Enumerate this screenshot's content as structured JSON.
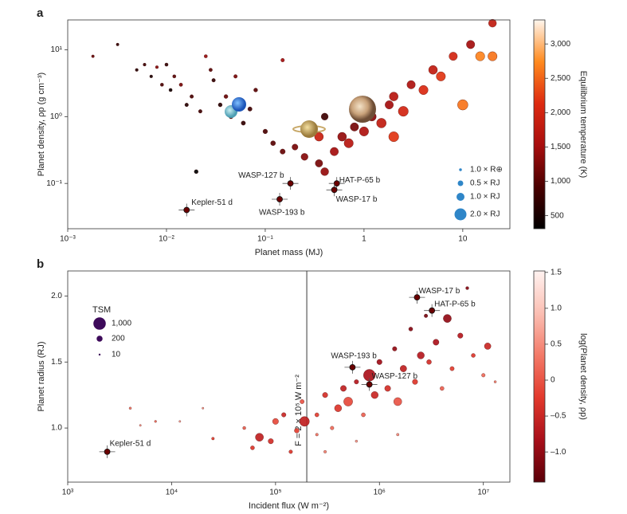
{
  "chart_data": [
    {
      "type": "scatter",
      "panel_label": "a",
      "xlabel": "Planet mass (MJ)",
      "ylabel": "Planet density, ρp (g cm⁻³)",
      "xscale": "log",
      "yscale": "log",
      "xlim": [
        0.001,
        30
      ],
      "ylim": [
        0.021,
        28
      ],
      "xticks": [
        {
          "value": 0.001,
          "label": "10⁻³"
        },
        {
          "value": 0.01,
          "label": "10⁻²"
        },
        {
          "value": 0.1,
          "label": "10⁻¹"
        },
        1,
        10
      ],
      "yticks": [
        {
          "value": 0.1,
          "label": "10⁻¹"
        },
        {
          "value": 1,
          "label": "10⁰"
        },
        {
          "value": 10,
          "label": "10¹"
        }
      ],
      "colorbar_label": "Equilibrium temperature (K)",
      "clim": [
        310,
        3350
      ],
      "cticks": [
        500,
        {
          "value": 1000,
          "label": "1,000"
        },
        {
          "value": 1500,
          "label": "1,500"
        },
        {
          "value": 2000,
          "label": "2,000"
        },
        {
          "value": 2500,
          "label": "2,500"
        },
        {
          "value": 3000,
          "label": "3,000"
        }
      ],
      "colormap": [
        "#000000",
        "#4a0000",
        "#a80e0e",
        "#dd2a10",
        "#ff8a1e",
        "#fff6ee"
      ],
      "series": [
        {
          "x": [
            0.0018,
            0.0032,
            0.005,
            0.006,
            0.007,
            0.008,
            0.009,
            0.01,
            0.011,
            0.012,
            0.014,
            0.016,
            0.018,
            0.02,
            0.022,
            0.025,
            0.028,
            0.03,
            0.035,
            0.04,
            0.045,
            0.05,
            0.06,
            0.07,
            0.08,
            0.1,
            0.12,
            0.15,
            0.15,
            0.2,
            0.25,
            0.3,
            0.35,
            0.4,
            0.5,
            0.6,
            0.7,
            0.8,
            1,
            1.2,
            1.5,
            1.8,
            2,
            2.5,
            3,
            4,
            5,
            6,
            8,
            10,
            15,
            20,
            20,
            2,
            0.35,
            1,
            0.4,
            12
          ],
          "values": [
            8,
            12,
            5,
            6,
            4,
            5.5,
            3,
            6,
            2.5,
            4,
            3,
            1.5,
            2,
            0.15,
            1.2,
            8,
            5,
            3.5,
            1.5,
            2,
            1,
            4,
            0.8,
            1.3,
            2.5,
            0.6,
            0.4,
            7,
            0.3,
            0.35,
            0.25,
            0.6,
            0.2,
            0.15,
            0.3,
            0.5,
            0.4,
            0.7,
            0.6,
            1,
            0.8,
            1.5,
            2,
            1.2,
            3,
            2.5,
            5,
            4,
            8,
            1.5,
            8,
            25,
            8,
            0.5,
            0.5,
            1.5,
            1,
            12
          ],
          "color_values": [
            1100,
            700,
            600,
            800,
            500,
            1300,
            900,
            700,
            400,
            1000,
            1200,
            600,
            900,
            300,
            800,
            1400,
            1000,
            700,
            600,
            1100,
            900,
            1200,
            700,
            800,
            1000,
            900,
            1000,
            1500,
            1100,
            1200,
            1300,
            1300,
            1200,
            1400,
            1500,
            1400,
            1700,
            1200,
            1600,
            1300,
            1800,
            1500,
            1700,
            2000,
            1600,
            2100,
            1800,
            2200,
            2000,
            2600,
            2700,
            1800,
            2600,
            2200,
            1900,
            1000,
            800,
            1500
          ],
          "sizes": [
            0.1,
            0.1,
            0.12,
            0.12,
            0.12,
            0.12,
            0.15,
            0.15,
            0.15,
            0.15,
            0.18,
            0.2,
            0.2,
            0.25,
            0.2,
            0.15,
            0.18,
            0.2,
            0.25,
            0.25,
            0.3,
            0.2,
            0.3,
            0.3,
            0.25,
            0.35,
            0.4,
            0.2,
            0.45,
            0.6,
            0.8,
            0.9,
            0.9,
            1.0,
            1.1,
            1.2,
            1.3,
            1.1,
            1.3,
            1.2,
            1.4,
            1.1,
            1.2,
            1.5,
            1.1,
            1.3,
            1.2,
            1.3,
            1.1,
            1.6,
            1.3,
            1.0,
            1.3,
            1.5,
            1.2,
            1.0,
            0.8,
            1.1
          ]
        }
      ],
      "annotations": [
        {
          "text": "Kepler-51 d",
          "x": 0.016,
          "y": 0.04
        },
        {
          "text": "WASP-193 b",
          "x": 0.14,
          "y": 0.058
        },
        {
          "text": "WASP-127 b",
          "x": 0.18,
          "y": 0.1
        },
        {
          "text": "HAT-P-65 b",
          "x": 0.53,
          "y": 0.1
        },
        {
          "text": "WASP-17 b",
          "x": 0.5,
          "y": 0.08
        }
      ],
      "size_legend": {
        "labels": [
          "1.0 × R⊕",
          "0.5 × RJ",
          "1.0 × RJ",
          "2.0 × RJ"
        ],
        "values": [
          0.0892,
          0.5,
          1,
          2
        ]
      }
    },
    {
      "type": "scatter",
      "panel_label": "b",
      "xlabel": "Incident flux (W m⁻²)",
      "ylabel": "Planet radius (RJ)",
      "xscale": "log",
      "yscale": "linear",
      "xlim": [
        1000,
        18000000
      ],
      "ylim": [
        0.59,
        2.19
      ],
      "xticks": [
        {
          "value": 1000,
          "label": "10³"
        },
        {
          "value": 10000,
          "label": "10⁴"
        },
        {
          "value": 100000,
          "label": "10⁵"
        },
        {
          "value": 1000000,
          "label": "10⁶"
        },
        {
          "value": 10000000,
          "label": "10⁷"
        }
      ],
      "yticks": [
        {
          "value": 1,
          "label": "1.0"
        },
        1.5,
        {
          "value": 2,
          "label": "2.0"
        }
      ],
      "colorbar_label": "log(Planet density, ρp)",
      "clim": [
        -1.42,
        1.52
      ],
      "cticks": [
        {
          "value": -1,
          "label": "–1.0"
        },
        {
          "value": -0.5,
          "label": "–0.5"
        },
        0,
        0.5,
        {
          "value": 1,
          "label": "1.0"
        },
        1.5
      ],
      "colormap": [
        "#5a0008",
        "#a80f1a",
        "#e2392c",
        "#f37a68",
        "#fbbfb3",
        "#fff2f0"
      ],
      "vline": {
        "x": 200000,
        "label": "F = 2 × 10⁵ W m⁻²"
      },
      "series": [
        {
          "x": [
            4000,
            5000,
            7000,
            12000,
            20000,
            25000,
            50000,
            60000,
            70000,
            90000,
            100000,
            120000,
            140000,
            160000,
            180000,
            190000,
            250000,
            300000,
            350000,
            400000,
            450000,
            500000,
            600000,
            700000,
            800000,
            900000,
            1000000,
            1200000,
            1400000,
            1500000,
            1700000,
            2000000,
            2200000,
            2500000,
            2800000,
            3000000,
            3500000,
            4000000,
            4500000,
            5000000,
            6000000,
            7000000,
            8000000,
            10000000,
            11000000,
            13000000,
            250000,
            1500000,
            600000,
            300000
          ],
          "values": [
            1.15,
            1.02,
            1.05,
            1.05,
            1.15,
            0.92,
            1.0,
            0.85,
            0.93,
            0.9,
            1.05,
            1.1,
            0.82,
            0.98,
            1.2,
            1.05,
            1.1,
            1.25,
            1.0,
            1.15,
            1.3,
            1.2,
            1.35,
            1.1,
            1.4,
            1.25,
            1.5,
            1.3,
            1.6,
            1.2,
            1.45,
            1.75,
            1.35,
            1.55,
            1.85,
            1.5,
            1.65,
            1.3,
            1.83,
            1.45,
            1.7,
            2.06,
            1.55,
            1.4,
            1.62,
            1.35,
            0.95,
            0.95,
            0.9,
            0.82
          ],
          "color_values": [
            0.3,
            0.5,
            0.2,
            0.6,
            0.5,
            -0.2,
            0.1,
            -0.3,
            -0.6,
            -0.4,
            -0.1,
            -0.5,
            -0.3,
            -0.2,
            0.0,
            -0.6,
            -0.2,
            -0.4,
            0.2,
            -0.3,
            -0.6,
            -0.1,
            -0.7,
            0.1,
            -0.8,
            -0.5,
            -0.9,
            -0.4,
            -1.0,
            0.0,
            -0.6,
            -1.1,
            -0.3,
            -0.7,
            -1.2,
            -0.4,
            -0.8,
            0.1,
            -1.0,
            -0.2,
            -0.7,
            -1.1,
            -0.3,
            0.2,
            -0.5,
            0.4,
            0.3,
            0.5,
            0.6,
            0.4
          ],
          "sizes": [
            20,
            10,
            15,
            10,
            10,
            30,
            40,
            80,
            400,
            150,
            200,
            100,
            60,
            120,
            90,
            600,
            80,
            150,
            60,
            300,
            200,
            500,
            100,
            80,
            900,
            300,
            150,
            200,
            100,
            400,
            250,
            80,
            150,
            300,
            60,
            120,
            200,
            80,
            400,
            90,
            150,
            40,
            80,
            60,
            250,
            20,
            30,
            25,
            20,
            30
          ]
        }
      ],
      "annotations": [
        {
          "text": "Kepler-51 d",
          "x": 2400,
          "y": 0.82
        },
        {
          "text": "WASP-193 b",
          "x": 550000,
          "y": 1.46
        },
        {
          "text": "WASP-127 b",
          "x": 800000,
          "y": 1.33
        },
        {
          "text": "HAT-P-65 b",
          "x": 3200000,
          "y": 1.89
        },
        {
          "text": "WASP-17 b",
          "x": 2300000,
          "y": 1.99
        }
      ],
      "size_legend": {
        "title": "TSM",
        "labels": [
          {
            "value": 1000,
            "label": "1,000"
          },
          200,
          10
        ]
      }
    }
  ]
}
